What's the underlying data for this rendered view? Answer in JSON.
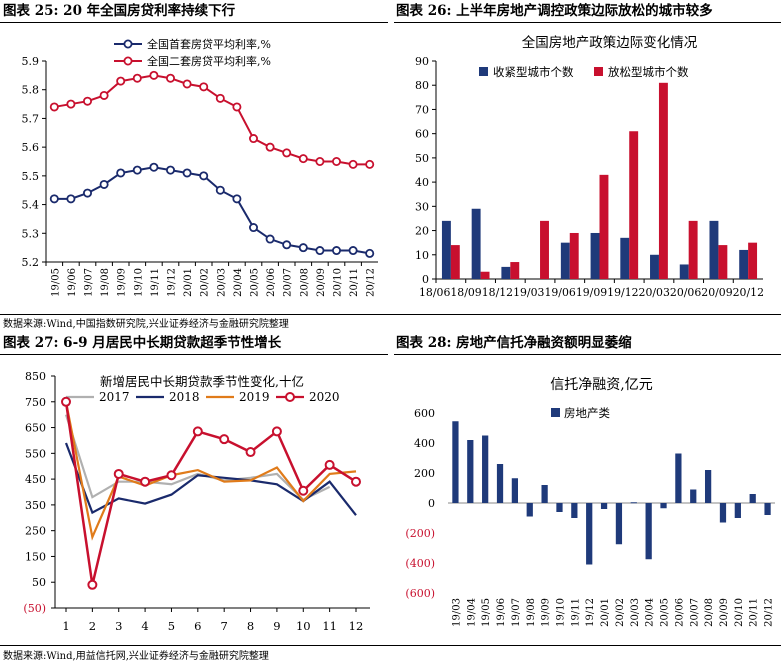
{
  "figures": {
    "fig25": {
      "title": "图表 25:  20 年全国房贷利率持续下行"
    },
    "fig26": {
      "title": "图表 26:  上半年房地产调控政策边际放松的城市较多"
    },
    "fig27": {
      "title": "图表 27:  6-9 月居民中长期贷款超季节性增长"
    },
    "fig28": {
      "title": "图表 28:  房地产信托净融资额明显萎缩"
    }
  },
  "sources": {
    "top": "数据来源:Wind,中国指数研究院,兴业证券经济与金融研究院整理",
    "bottom": "数据来源:Wind,用益信托网,兴业证券经济与金融研究院整理"
  },
  "colors": {
    "navy": "#1a2a6c",
    "red": "#c8102e",
    "orange": "#e07b1a",
    "gray": "#b0b0b0",
    "bar_navy": "#1f3a7a"
  },
  "chart_data": [
    {
      "id": "fig25",
      "type": "line",
      "title": "",
      "categories": [
        "19/05",
        "19/06",
        "19/07",
        "19/08",
        "19/09",
        "19/10",
        "19/11",
        "19/12",
        "20/01",
        "20/02",
        "20/03",
        "20/04",
        "20/05",
        "20/06",
        "20/07",
        "20/08",
        "20/09",
        "20/10",
        "20/11",
        "20/12"
      ],
      "series": [
        {
          "name": "全国首套房贷平均利率,%",
          "color": "#1a2a6c",
          "values": [
            5.42,
            5.42,
            5.44,
            5.47,
            5.51,
            5.52,
            5.53,
            5.52,
            5.51,
            5.5,
            5.45,
            5.42,
            5.32,
            5.28,
            5.26,
            5.25,
            5.24,
            5.24,
            5.24,
            5.23
          ]
        },
        {
          "name": "全国二套房贷平均利率,%",
          "color": "#c8102e",
          "values": [
            5.74,
            5.75,
            5.76,
            5.78,
            5.83,
            5.84,
            5.85,
            5.84,
            5.82,
            5.81,
            5.77,
            5.74,
            5.63,
            5.6,
            5.58,
            5.56,
            5.55,
            5.55,
            5.54,
            5.54
          ]
        }
      ],
      "ylim": [
        5.2,
        5.9
      ],
      "yticks": [
        "5.2",
        "5.3",
        "5.4",
        "5.5",
        "5.6",
        "5.7",
        "5.8",
        "5.9"
      ],
      "legend_position": "top"
    },
    {
      "id": "fig26",
      "type": "bar",
      "title": "全国房地产政策边际变化情况",
      "categories": [
        "18/06",
        "18/09",
        "18/12",
        "19/03",
        "19/06",
        "19/09",
        "19/12",
        "20/03",
        "20/06",
        "20/09",
        "20/12"
      ],
      "series": [
        {
          "name": "收紧型城市个数",
          "color": "#1f3a7a",
          "values": [
            24,
            29,
            5,
            0,
            15,
            19,
            17,
            10,
            6,
            24,
            12
          ]
        },
        {
          "name": "放松型城市个数",
          "color": "#c8102e",
          "values": [
            14,
            3,
            7,
            24,
            19,
            43,
            61,
            81,
            24,
            14,
            15
          ]
        }
      ],
      "ylim": [
        0,
        90
      ],
      "yticks": [
        "0",
        "10",
        "20",
        "30",
        "40",
        "50",
        "60",
        "70",
        "80",
        "90"
      ],
      "legend_position": "top"
    },
    {
      "id": "fig27",
      "type": "line",
      "title": "新增居民中长期贷款季节性变化,十亿",
      "categories": [
        "1",
        "2",
        "3",
        "4",
        "5",
        "6",
        "7",
        "8",
        "9",
        "10",
        "11",
        "12"
      ],
      "series": [
        {
          "name": "2017",
          "color": "#b0b0b0",
          "values": [
            700,
            380,
            440,
            440,
            430,
            470,
            445,
            455,
            470,
            370,
            420,
            null
          ]
        },
        {
          "name": "2018",
          "color": "#1a2a6c",
          "values": [
            590,
            320,
            375,
            355,
            390,
            465,
            455,
            445,
            430,
            365,
            440,
            310
          ]
        },
        {
          "name": "2019",
          "color": "#e07b1a",
          "values": [
            750,
            225,
            460,
            425,
            465,
            485,
            440,
            445,
            495,
            365,
            470,
            480
          ]
        },
        {
          "name": "2020",
          "color": "#c8102e",
          "values": [
            750,
            40,
            470,
            440,
            465,
            635,
            605,
            555,
            635,
            405,
            505,
            440
          ]
        }
      ],
      "ylim": [
        -50,
        850
      ],
      "yticks": [
        "(50)",
        "50",
        "150",
        "250",
        "350",
        "450",
        "550",
        "650",
        "750",
        "850"
      ],
      "legend_position": "top"
    },
    {
      "id": "fig28",
      "type": "bar",
      "title": "信托净融资,亿元",
      "categories": [
        "19/03",
        "19/04",
        "19/05",
        "19/06",
        "19/07",
        "19/08",
        "19/09",
        "19/10",
        "19/11",
        "19/12",
        "20/01",
        "20/02",
        "20/03",
        "20/04",
        "20/05",
        "20/06",
        "20/07",
        "20/08",
        "20/09",
        "20/10",
        "20/11",
        "20/12"
      ],
      "series": [
        {
          "name": "房地产类",
          "color": "#1f3a7a",
          "values": [
            545,
            420,
            450,
            260,
            165,
            -90,
            120,
            -60,
            -100,
            -410,
            -40,
            -275,
            5,
            -375,
            -35,
            330,
            90,
            220,
            -130,
            -100,
            60,
            -80
          ]
        }
      ],
      "ylim": [
        -600,
        600
      ],
      "yticks": [
        "(600)",
        "(400)",
        "(200)",
        "0",
        "200",
        "400",
        "600"
      ],
      "legend_position": "top-left"
    }
  ]
}
